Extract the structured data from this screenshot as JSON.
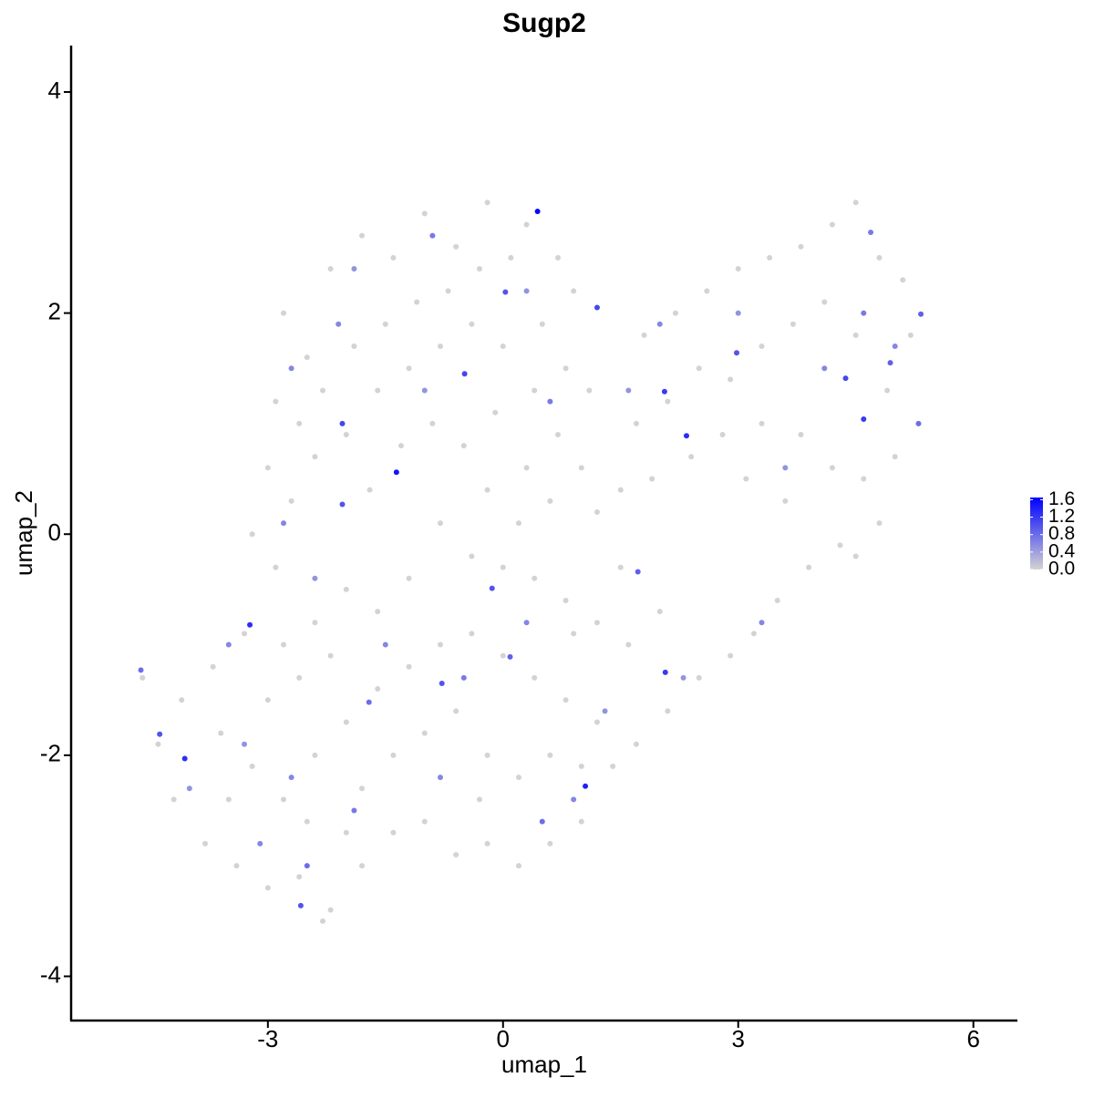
{
  "chart_data": {
    "type": "scatter",
    "title": "Sugp2",
    "x_label": "umap_1",
    "y_label": "umap_2",
    "xlim": [
      -5.51,
      6.55
    ],
    "ylim": [
      -4.4,
      4.42
    ],
    "xticks": [
      -3,
      0,
      3,
      6
    ],
    "yticks": [
      -4,
      -2,
      0,
      2,
      4
    ],
    "low_color": "#d3d3d3",
    "high_color": "#0000ff",
    "colorlim": [
      0,
      1.65
    ],
    "colorticks": [
      {
        "value": 0,
        "label": "0.0"
      },
      0.4,
      0.8,
      1.2,
      1.6
    ],
    "x": [
      -2.8,
      -2.5,
      -2.2,
      -1.8,
      -1.4,
      -1.0,
      -0.6,
      -0.2,
      0.3,
      0.7,
      0.9,
      -2.9,
      -2.6,
      -2.3,
      -1.9,
      -1.5,
      -1.1,
      -0.7,
      -0.3,
      0.1,
      0.5,
      0.8,
      1.1,
      -3.0,
      -2.7,
      -2.4,
      -2.0,
      -1.6,
      -1.2,
      -0.8,
      -0.4,
      0.0,
      0.4,
      0.7,
      1.0,
      -3.2,
      -2.9,
      -1.7,
      -1.3,
      -0.9,
      -0.5,
      -0.1,
      0.3,
      0.6,
      1.2,
      1.5,
      1.8,
      2.2,
      2.6,
      3.0,
      3.4,
      3.8,
      4.2,
      4.5,
      4.8,
      5.1,
      5.2,
      4.9,
      4.5,
      4.1,
      3.7,
      3.3,
      2.9,
      2.5,
      2.1,
      1.7,
      1.9,
      2.4,
      2.8,
      3.3,
      3.8,
      4.2,
      4.6,
      5.0,
      4.8,
      4.3,
      3.9,
      3.5,
      3.2,
      2.9,
      2.5,
      2.1,
      1.7,
      1.4,
      3.6,
      3.1,
      4.5,
      -0.8,
      -0.4,
      0.0,
      0.4,
      0.8,
      1.2,
      1.6,
      2.0,
      -1.2,
      -1.6,
      -2.0,
      -2.4,
      -2.8,
      -3.3,
      -3.7,
      -4.1,
      -4.4,
      -4.2,
      -3.8,
      -3.4,
      -3.0,
      -2.6,
      -2.2,
      -1.8,
      -1.4,
      -1.0,
      -0.6,
      -0.2,
      0.2,
      0.6,
      1.0,
      -3.6,
      -3.2,
      -2.8,
      -2.4,
      -2.0,
      -1.6,
      -1.2,
      -0.8,
      -0.4,
      0.0,
      0.4,
      0.8,
      1.2,
      -3.0,
      -2.6,
      -2.2,
      -1.8,
      -1.4,
      -1.0,
      -0.6,
      -0.2,
      0.2,
      0.6,
      1.0,
      -0.3,
      -2.0,
      -2.5,
      -3.5,
      -4.6,
      -2.3,
      0.9,
      1.5,
      -0.2,
      0.2,
      -2.7,
      -1.9,
      -0.9,
      0.3,
      -2.1,
      -1.0,
      0.6,
      -2.8,
      -2.4,
      -1.5,
      -0.5,
      0.3,
      -3.3,
      -2.7,
      -1.9,
      -0.8,
      0.5,
      0.9,
      1.3,
      2.3,
      3.3,
      3.6,
      4.1,
      4.6,
      5.0,
      3.0,
      2.0,
      1.6,
      -3.5,
      -4.0,
      -3.1,
      -2.5,
      0.44,
      -1.36,
      -4.06,
      -4.38,
      -4.62,
      -3.23,
      -2.58,
      1.05,
      2.07,
      2.06,
      2.34,
      4.6,
      4.37,
      2.98,
      4.94,
      5.3,
      5.33,
      4.69,
      1.2,
      0.03,
      -0.49,
      -2.05,
      -2.05,
      -0.14,
      -0.78,
      0.09,
      1.72,
      -1.71
    ],
    "y": [
      2.0,
      1.6,
      2.4,
      2.7,
      2.5,
      2.9,
      2.6,
      3.0,
      2.8,
      2.5,
      2.2,
      1.2,
      1.0,
      1.3,
      1.7,
      1.9,
      2.1,
      2.2,
      2.4,
      2.5,
      1.9,
      1.5,
      1.3,
      0.6,
      0.3,
      0.7,
      0.9,
      1.3,
      1.5,
      1.7,
      1.9,
      1.7,
      1.3,
      0.9,
      0.6,
      0.0,
      -0.3,
      0.4,
      0.8,
      1.0,
      0.8,
      1.1,
      0.6,
      0.3,
      0.2,
      0.4,
      1.8,
      2.0,
      2.2,
      2.4,
      2.5,
      2.6,
      2.8,
      3.0,
      2.5,
      2.3,
      1.8,
      1.3,
      1.8,
      2.1,
      1.9,
      1.7,
      1.4,
      1.5,
      1.2,
      1.0,
      0.5,
      0.7,
      0.9,
      1.0,
      0.9,
      0.6,
      0.5,
      0.7,
      0.1,
      -0.1,
      -0.3,
      -0.6,
      -0.9,
      -1.1,
      -1.3,
      -1.6,
      -1.9,
      -2.1,
      0.3,
      0.5,
      -0.2,
      0.1,
      -0.2,
      -0.3,
      -0.4,
      -0.6,
      -0.8,
      -1.0,
      -0.7,
      -0.4,
      -0.7,
      -0.5,
      -0.8,
      -1.0,
      -0.9,
      -1.2,
      -1.5,
      -1.9,
      -2.4,
      -2.8,
      -3.0,
      -3.2,
      -3.1,
      -3.4,
      -3.0,
      -2.7,
      -2.6,
      -2.9,
      -2.8,
      -3.0,
      -2.8,
      -2.6,
      -1.8,
      -2.1,
      -2.4,
      -2.0,
      -1.7,
      -1.4,
      -1.2,
      -1.0,
      -0.9,
      -1.1,
      -1.3,
      -1.5,
      -1.7,
      -1.5,
      -1.3,
      -1.1,
      -2.3,
      -2.0,
      -1.8,
      -1.6,
      -2.0,
      -2.2,
      -2.0,
      -2.1,
      -2.4,
      -2.7,
      -2.6,
      -2.4,
      -1.3,
      -3.5,
      -0.9,
      -0.3,
      0.4,
      0.1,
      1.5,
      2.4,
      2.7,
      2.2,
      1.9,
      1.3,
      1.2,
      0.1,
      -0.4,
      -1.0,
      -1.3,
      -0.8,
      -1.9,
      -2.2,
      -2.5,
      -2.2,
      -2.6,
      -2.4,
      -1.6,
      -1.3,
      -0.8,
      0.6,
      1.5,
      2.0,
      1.7,
      2.0,
      1.9,
      1.3,
      -1.0,
      -2.3,
      -2.8,
      -3.0,
      2.92,
      0.56,
      -2.03,
      -1.81,
      -1.23,
      -0.82,
      -3.36,
      -2.28,
      -1.25,
      1.29,
      0.89,
      1.04,
      1.41,
      1.64,
      1.55,
      1.0,
      1.99,
      2.73,
      2.05,
      2.19,
      1.45,
      1.0,
      0.27,
      -0.49,
      -1.35,
      -1.11,
      -0.34,
      -1.52
    ],
    "values": [
      0,
      0,
      0,
      0,
      0,
      0,
      0,
      0,
      0,
      0,
      0,
      0,
      0,
      0,
      0,
      0,
      0,
      0,
      0,
      0,
      0,
      0,
      0,
      0,
      0,
      0,
      0,
      0,
      0,
      0,
      0,
      0,
      0,
      0,
      0,
      0,
      0,
      0,
      0,
      0,
      0,
      0,
      0,
      0,
      0,
      0,
      0,
      0,
      0,
      0,
      0,
      0,
      0,
      0,
      0,
      0,
      0,
      0,
      0,
      0,
      0,
      0,
      0,
      0,
      0,
      0,
      0,
      0,
      0,
      0,
      0,
      0,
      0,
      0,
      0,
      0,
      0,
      0,
      0,
      0,
      0,
      0,
      0,
      0,
      0,
      0,
      0,
      0,
      0,
      0,
      0,
      0,
      0,
      0,
      0,
      0,
      0,
      0,
      0,
      0,
      0,
      0,
      0,
      0,
      0,
      0,
      0,
      0,
      0,
      0,
      0,
      0,
      0,
      0,
      0,
      0,
      0,
      0,
      0,
      0,
      0,
      0,
      0,
      0,
      0,
      0,
      0,
      0,
      0,
      0,
      0,
      0,
      0,
      0,
      0,
      0,
      0,
      0,
      0,
      0,
      0,
      0,
      0,
      0,
      0,
      0,
      0,
      0,
      0,
      0,
      0,
      0,
      0.6,
      0.5,
      0.7,
      0.5,
      0.6,
      0.5,
      0.7,
      0.6,
      0.5,
      0.6,
      0.7,
      0.6,
      0.5,
      0.6,
      0.7,
      0.6,
      0.8,
      0.6,
      0.5,
      0.5,
      0.6,
      0.5,
      0.6,
      0.7,
      0.6,
      0.5,
      0.6,
      0.5,
      0.6,
      0.5,
      0.6,
      0.8,
      1.6,
      1.5,
      1.3,
      1.0,
      0.8,
      1.3,
      1.0,
      1.4,
      1.2,
      1.2,
      1.3,
      1.2,
      1.1,
      1.0,
      0.9,
      0.8,
      0.9,
      0.7,
      1.1,
      1.0,
      1.1,
      1.1,
      1.0,
      1.0,
      1.0,
      0.9,
      0.9,
      0.8
    ]
  }
}
